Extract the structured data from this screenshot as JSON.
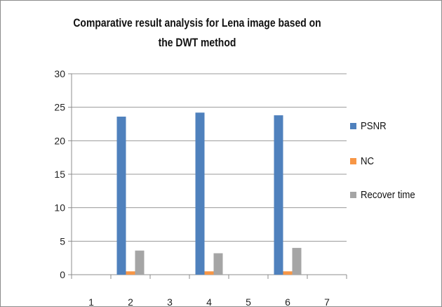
{
  "chart_data": {
    "type": "bar",
    "title": "Comparative result analysis for Lena image based on the DWT method",
    "categories": [
      "1",
      "2",
      "3",
      "4",
      "5",
      "6",
      "7"
    ],
    "series": [
      {
        "name": "PSNR",
        "color": "#4f81bd",
        "values": [
          0,
          23.6,
          0,
          24.2,
          0,
          23.8,
          0
        ]
      },
      {
        "name": "NC",
        "color": "#f79646",
        "values": [
          0,
          0.5,
          0,
          0.5,
          0,
          0.5,
          0
        ]
      },
      {
        "name": "Recover time",
        "color": "#a5a5a5",
        "values": [
          0,
          3.6,
          0,
          3.2,
          0,
          4.0,
          0
        ]
      }
    ],
    "ylim": [
      0,
      30
    ],
    "yticks": [
      0,
      5,
      10,
      15,
      20,
      25,
      30
    ],
    "grid": true,
    "legend": "right"
  }
}
